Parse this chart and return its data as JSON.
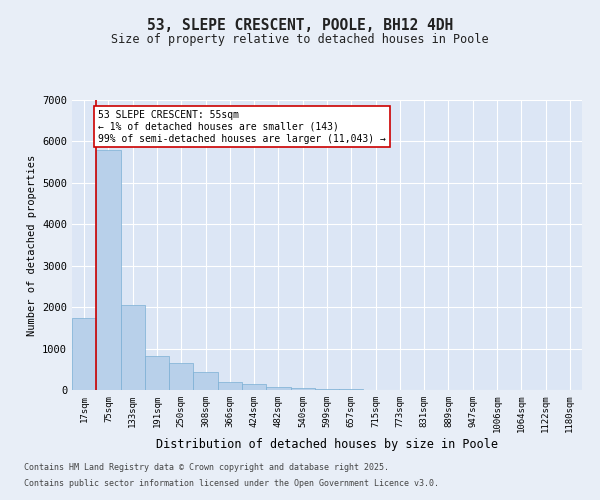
{
  "title": "53, SLEPE CRESCENT, POOLE, BH12 4DH",
  "subtitle": "Size of property relative to detached houses in Poole",
  "xlabel": "Distribution of detached houses by size in Poole",
  "ylabel": "Number of detached properties",
  "bar_color": "#b8d0ea",
  "bar_edge_color": "#7aafd4",
  "background_color": "#dce6f5",
  "fig_background_color": "#e8eef7",
  "categories": [
    "17sqm",
    "75sqm",
    "133sqm",
    "191sqm",
    "250sqm",
    "308sqm",
    "366sqm",
    "424sqm",
    "482sqm",
    "540sqm",
    "599sqm",
    "657sqm",
    "715sqm",
    "773sqm",
    "831sqm",
    "889sqm",
    "947sqm",
    "1006sqm",
    "1064sqm",
    "1122sqm",
    "1180sqm"
  ],
  "values": [
    1750,
    5800,
    2050,
    820,
    650,
    430,
    200,
    140,
    75,
    45,
    28,
    15,
    8,
    4,
    3,
    2,
    1,
    1,
    1,
    0,
    0
  ],
  "ylim": [
    0,
    7000
  ],
  "yticks": [
    0,
    1000,
    2000,
    3000,
    4000,
    5000,
    6000,
    7000
  ],
  "property_line_x": 0.5,
  "property_line_color": "#cc0000",
  "annotation_text": "53 SLEPE CRESCENT: 55sqm\n← 1% of detached houses are smaller (143)\n99% of semi-detached houses are larger (11,043) →",
  "annotation_box_color": "#ffffff",
  "annotation_box_edge": "#cc0000",
  "footer_line1": "Contains HM Land Registry data © Crown copyright and database right 2025.",
  "footer_line2": "Contains public sector information licensed under the Open Government Licence v3.0."
}
